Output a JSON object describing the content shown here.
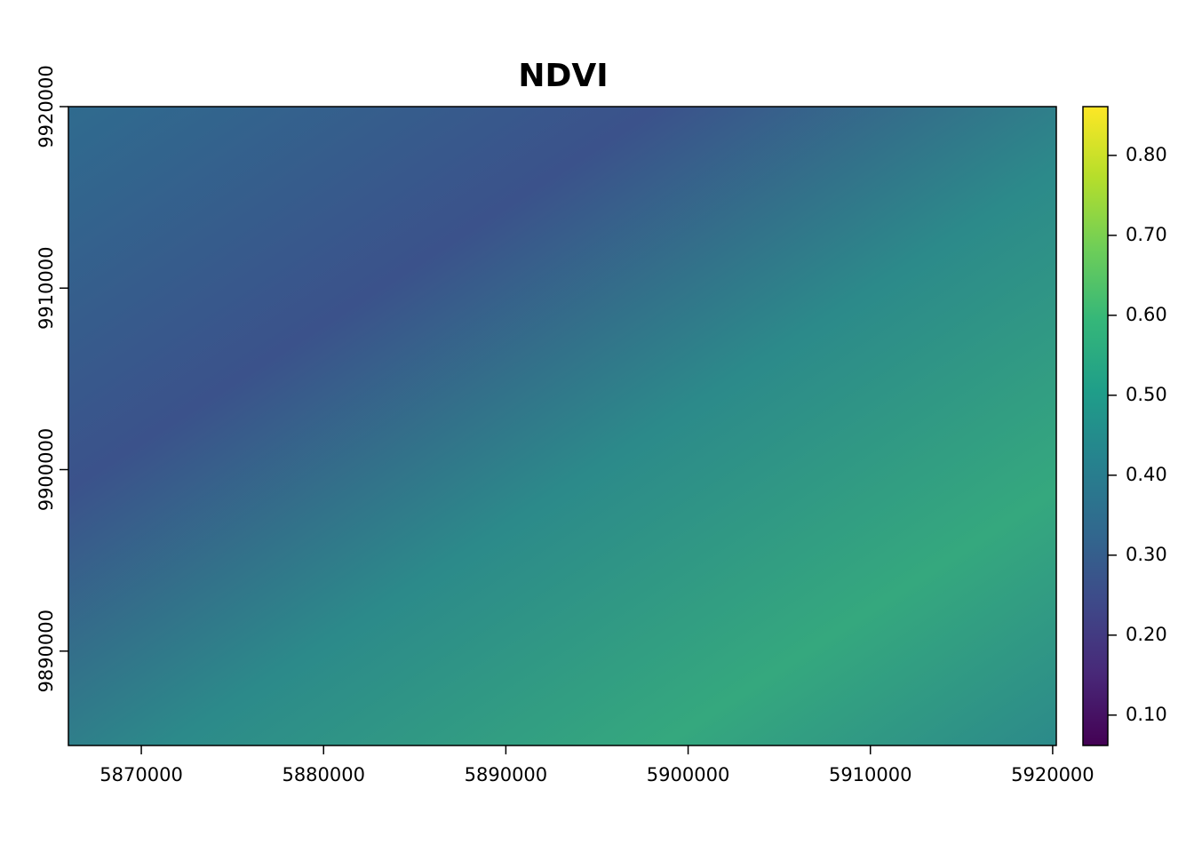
{
  "chart_data": {
    "type": "raster",
    "title": "NDVI",
    "colormap": "viridis",
    "xlim": [
      5866000,
      5920200
    ],
    "xticks": [
      5870000,
      5880000,
      5890000,
      5900000,
      5910000,
      5920000
    ],
    "ylim": [
      9884800,
      9920000
    ],
    "yticks": [
      9890000,
      9900000,
      9910000,
      9920000
    ],
    "zlim": [
      0.062,
      0.861
    ],
    "zticks": [
      {
        "value": 0.1,
        "label": "0.10"
      },
      {
        "value": 0.2,
        "label": "0.20"
      },
      {
        "value": 0.3,
        "label": "0.30"
      },
      {
        "value": 0.4,
        "label": "0.40"
      },
      {
        "value": 0.5,
        "label": "0.50"
      },
      {
        "value": 0.6,
        "label": "0.60"
      },
      {
        "value": 0.7,
        "label": "0.70"
      },
      {
        "value": 0.8,
        "label": "0.80"
      }
    ]
  }
}
